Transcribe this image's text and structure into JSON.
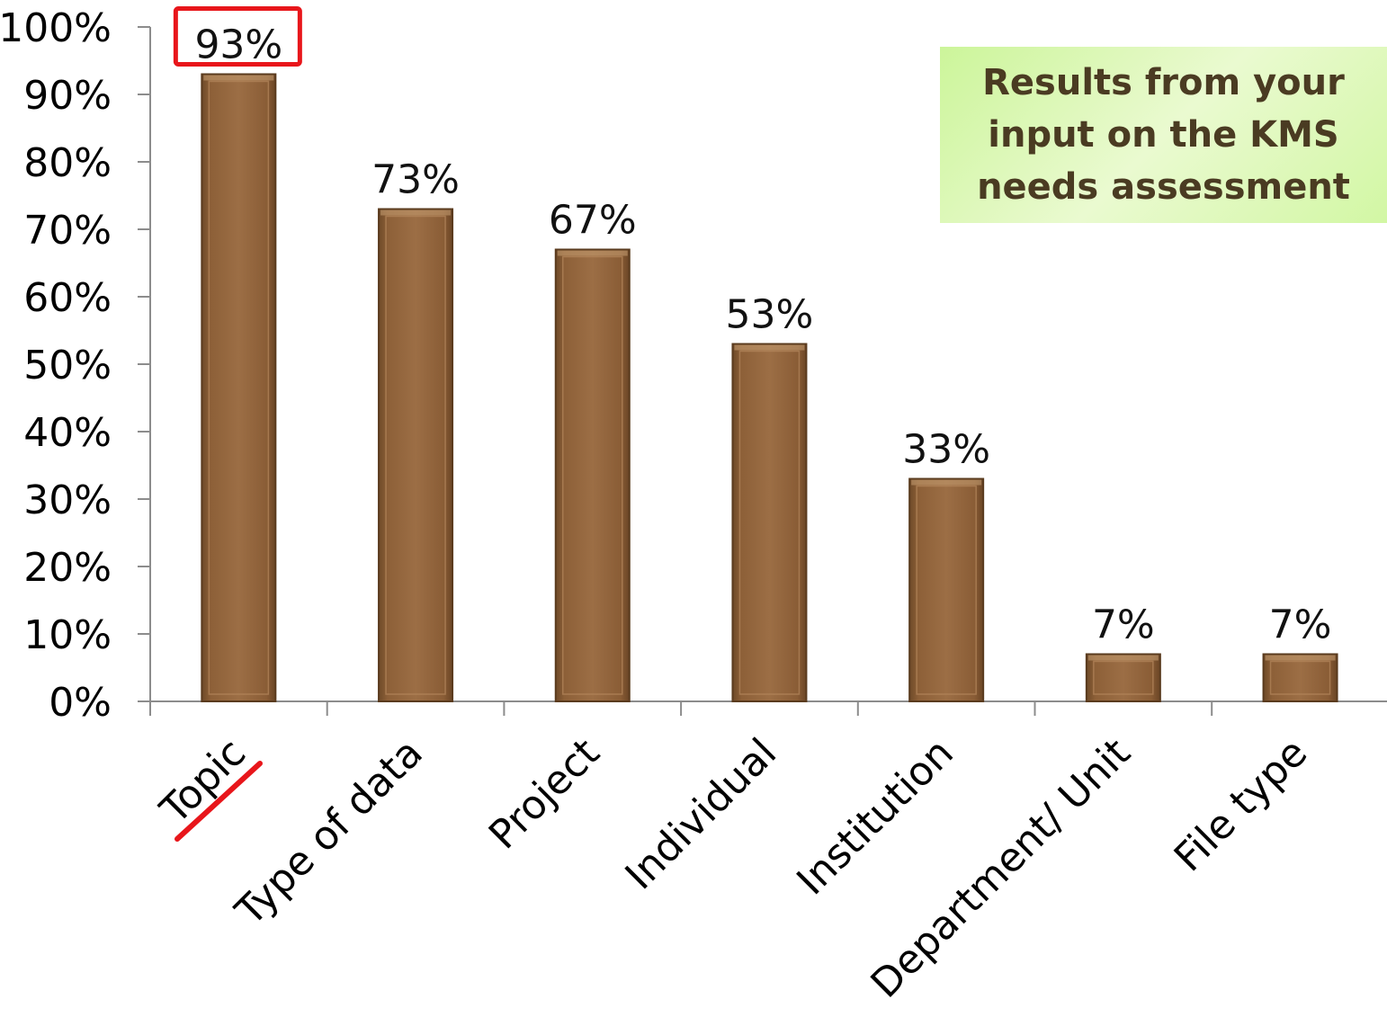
{
  "chart_data": {
    "type": "bar",
    "title": "Results from your\ninput on the KMS\nneeds assessment",
    "categories": [
      "Topic",
      "Type of data",
      "Project",
      "Individual",
      "Institution",
      "Department/ Unit",
      "File type"
    ],
    "values": [
      93,
      73,
      67,
      53,
      33,
      7,
      7
    ],
    "data_labels": [
      "93%",
      "73%",
      "67%",
      "53%",
      "33%",
      "7%",
      "7%"
    ],
    "ylim": [
      0,
      100
    ],
    "yticks": [
      "0%",
      "10%",
      "20%",
      "30%",
      "40%",
      "50%",
      "60%",
      "70%",
      "80%",
      "90%",
      "100%"
    ],
    "grid": false,
    "highlight": {
      "category": "Topic",
      "label_box_color": "#e8161b",
      "underline_color": "#e8161b"
    },
    "colors": {
      "bar_fill": "#93663f",
      "bar_edge": "#5a3b1e",
      "axis": "#8c8c8c"
    }
  }
}
